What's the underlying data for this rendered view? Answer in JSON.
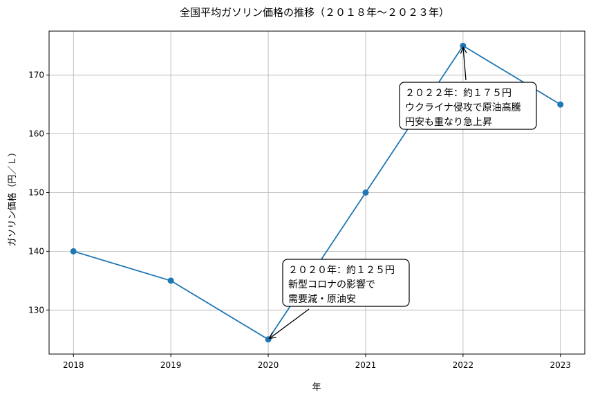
{
  "chart_data": {
    "type": "line",
    "title": "全国平均ガソリン価格の推移（２０１８年〜２０２３年）",
    "xlabel": "年",
    "ylabel": "ガソリン価格（円／Ｌ）",
    "x": [
      2018,
      2019,
      2020,
      2021,
      2022,
      2023
    ],
    "values": [
      140,
      135,
      125,
      150,
      175,
      165
    ],
    "xlim": [
      2017.75,
      2023.25
    ],
    "ylim": [
      122.5,
      177.5
    ],
    "xticks": [
      "2018",
      "2019",
      "2020",
      "2021",
      "2022",
      "2023"
    ],
    "yticks": [
      130,
      140,
      150,
      160,
      170
    ],
    "grid": true,
    "line_color": "#1f77b4",
    "annotations": [
      {
        "x": 2020,
        "y": 125,
        "lines": [
          "２０２０年：約１２５円",
          "新型コロナの影響で",
          "需要減・原油安"
        ]
      },
      {
        "x": 2022,
        "y": 175,
        "lines": [
          "２０２２年：約１７５円",
          "ウクライナ侵攻で原油高騰",
          "円安も重なり急上昇"
        ]
      }
    ]
  }
}
